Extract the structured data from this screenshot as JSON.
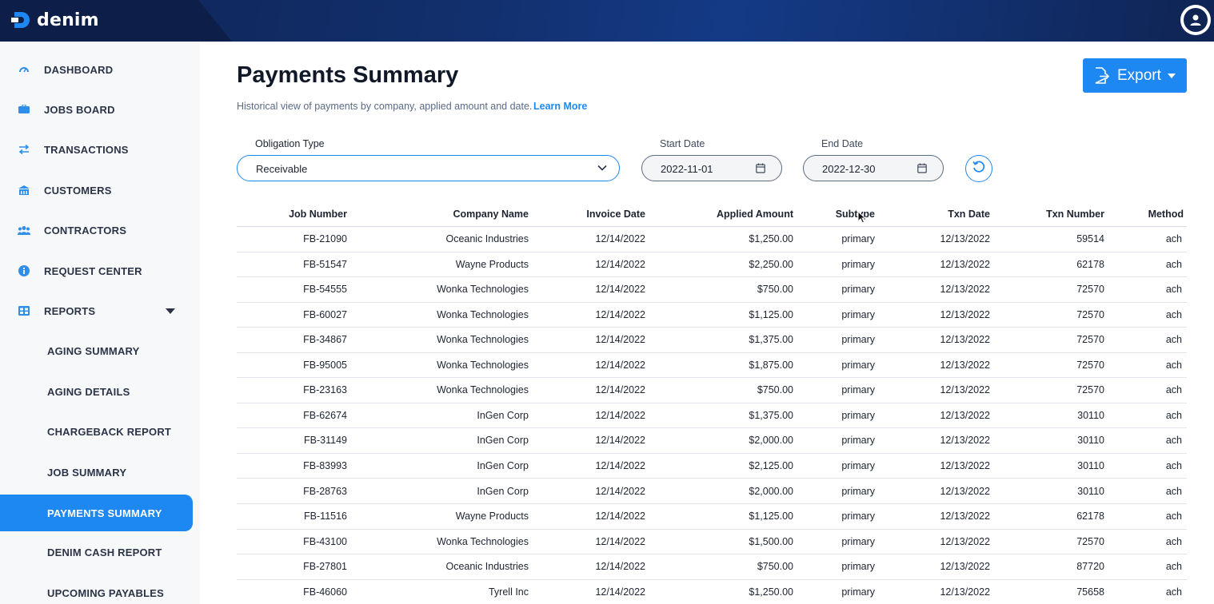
{
  "app": {
    "name": "denim"
  },
  "sidebar": {
    "items": [
      {
        "label": "DASHBOARD",
        "icon": "dashboard-icon"
      },
      {
        "label": "JOBS BOARD",
        "icon": "jobs-board-icon"
      },
      {
        "label": "TRANSACTIONS",
        "icon": "transactions-icon"
      },
      {
        "label": "CUSTOMERS",
        "icon": "customers-icon"
      },
      {
        "label": "CONTRACTORS",
        "icon": "contractors-icon"
      },
      {
        "label": "REQUEST CENTER",
        "icon": "info-icon"
      },
      {
        "label": "REPORTS",
        "icon": "reports-icon"
      }
    ],
    "sub_items": [
      {
        "label": "AGING SUMMARY"
      },
      {
        "label": "AGING DETAILS"
      },
      {
        "label": "CHARGEBACK REPORT"
      },
      {
        "label": "JOB SUMMARY"
      },
      {
        "label": "PAYMENTS SUMMARY",
        "active": true
      },
      {
        "label": "DENIM CASH REPORT"
      },
      {
        "label": "UPCOMING PAYABLES"
      }
    ]
  },
  "header": {
    "title": "Payments Summary",
    "subtitle": "Historical view of payments by company, applied amount and date.",
    "learn_more": "Learn More",
    "export_label": "Export"
  },
  "filters": {
    "obligation_type_label": "Obligation Type",
    "obligation_type_value": "Receivable",
    "start_date_label": "Start Date",
    "start_date_value": "2022-11-01",
    "end_date_label": "End Date",
    "end_date_value": "2022-12-30"
  },
  "table": {
    "columns": [
      "Job Number",
      "Company Name",
      "Invoice Date",
      "Applied Amount",
      "Subtype",
      "Txn Date",
      "Txn Number",
      "Method"
    ],
    "rows": [
      [
        "FB-21090",
        "Oceanic Industries",
        "12/14/2022",
        "$1,250.00",
        "primary",
        "12/13/2022",
        "59514",
        "ach"
      ],
      [
        "FB-51547",
        "Wayne Products",
        "12/14/2022",
        "$2,250.00",
        "primary",
        "12/13/2022",
        "62178",
        "ach"
      ],
      [
        "FB-54555",
        "Wonka Technologies",
        "12/14/2022",
        "$750.00",
        "primary",
        "12/13/2022",
        "72570",
        "ach"
      ],
      [
        "FB-60027",
        "Wonka Technologies",
        "12/14/2022",
        "$1,125.00",
        "primary",
        "12/13/2022",
        "72570",
        "ach"
      ],
      [
        "FB-34867",
        "Wonka Technologies",
        "12/14/2022",
        "$1,375.00",
        "primary",
        "12/13/2022",
        "72570",
        "ach"
      ],
      [
        "FB-95005",
        "Wonka Technologies",
        "12/14/2022",
        "$1,875.00",
        "primary",
        "12/13/2022",
        "72570",
        "ach"
      ],
      [
        "FB-23163",
        "Wonka Technologies",
        "12/14/2022",
        "$750.00",
        "primary",
        "12/13/2022",
        "72570",
        "ach"
      ],
      [
        "FB-62674",
        "InGen Corp",
        "12/14/2022",
        "$1,375.00",
        "primary",
        "12/13/2022",
        "30110",
        "ach"
      ],
      [
        "FB-31149",
        "InGen Corp",
        "12/14/2022",
        "$2,000.00",
        "primary",
        "12/13/2022",
        "30110",
        "ach"
      ],
      [
        "FB-83993",
        "InGen Corp",
        "12/14/2022",
        "$2,125.00",
        "primary",
        "12/13/2022",
        "30110",
        "ach"
      ],
      [
        "FB-28763",
        "InGen Corp",
        "12/14/2022",
        "$2,000.00",
        "primary",
        "12/13/2022",
        "30110",
        "ach"
      ],
      [
        "FB-11516",
        "Wayne Products",
        "12/14/2022",
        "$1,125.00",
        "primary",
        "12/13/2022",
        "62178",
        "ach"
      ],
      [
        "FB-43100",
        "Wonka Technologies",
        "12/14/2022",
        "$1,500.00",
        "primary",
        "12/13/2022",
        "72570",
        "ach"
      ],
      [
        "FB-27801",
        "Oceanic Industries",
        "12/14/2022",
        "$750.00",
        "primary",
        "12/13/2022",
        "87720",
        "ach"
      ],
      [
        "FB-46060",
        "Tyrell Inc",
        "12/14/2022",
        "$1,250.00",
        "primary",
        "12/13/2022",
        "75658",
        "ach"
      ]
    ]
  },
  "colors": {
    "accent": "#1e88f2",
    "topbar": "#0f2453",
    "sidebar_bg": "#f7f8fa"
  }
}
